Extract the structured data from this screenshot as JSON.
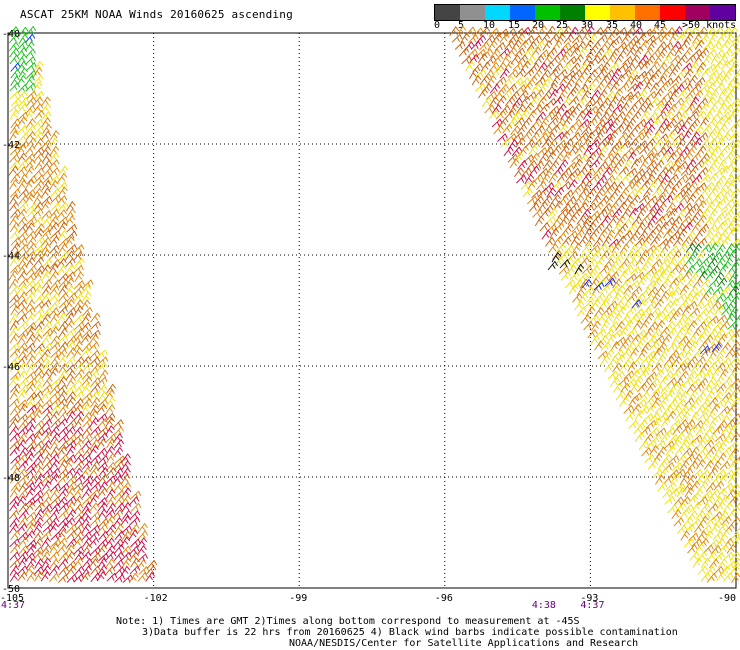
{
  "title": "ASCAT 25KM NOAA Winds 20160625 ascending",
  "legend": {
    "labels": [
      "0",
      "5",
      "10",
      "15",
      "20",
      "25",
      "30",
      "35",
      "40",
      "45",
      ">50 knots"
    ],
    "colors": [
      "#444444",
      "#909090",
      "#00d8ff",
      "#0066ff",
      "#00c000",
      "#008000",
      "#ffff00",
      "#ffc000",
      "#ff7000",
      "#ff0000",
      "#a00060",
      "#6000a0"
    ]
  },
  "map": {
    "lon_labels": [
      "-105",
      "-102",
      "-99",
      "-96",
      "-93",
      "-90"
    ],
    "lat_labels": [
      "-40",
      "-42",
      "-44",
      "-46",
      "-48",
      "-50"
    ],
    "time_labels": [
      {
        "text": "4:37",
        "at_lon": "-105"
      },
      {
        "text": "4:38",
        "at_lon": "-94"
      },
      {
        "text": "4:37",
        "at_lon": "-93"
      }
    ]
  },
  "notes": {
    "line1": "Note: 1) Times are GMT 2)Times along bottom correspond to measurement at -45S",
    "line2": "3)Data buffer is 22 hrs from 20160625 4) Black wind barbs indicate possible contamination",
    "line3": "NOAA/NESDIS/Center for Satellite Applications and Research"
  }
}
